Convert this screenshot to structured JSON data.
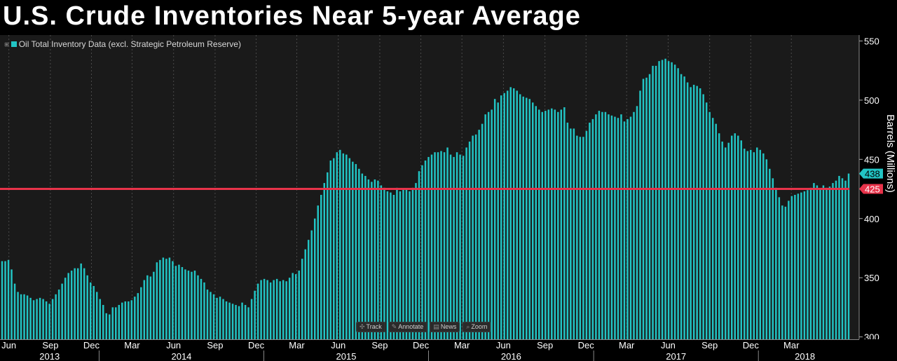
{
  "title": "U.S. Crude Inventories Near 5-year Average",
  "toolbar": [
    {
      "icon": "track-icon",
      "glyph": "✣",
      "label": "Track"
    },
    {
      "icon": "annotate-icon",
      "glyph": "✎",
      "label": "Annotate"
    },
    {
      "icon": "news-icon",
      "glyph": "▤",
      "label": "News"
    },
    {
      "icon": "zoom-icon",
      "glyph": "⌕",
      "label": "Zoom"
    }
  ],
  "colors": {
    "background": "#1a1a1a",
    "bar": "#22c4c4",
    "reference_line": "#e8334a",
    "grid": "#4a4a4a",
    "axis_text": "#ffffff"
  },
  "chart_data": {
    "type": "bar",
    "legend": [
      "Oil Total Inventory Data (excl. Strategic Petroleum Reserve)"
    ],
    "legend_placement": "top-left",
    "ylabel": "Barrels (Millions)",
    "ylim": [
      298,
      555
    ],
    "y_ticks": [
      300,
      350,
      400,
      450,
      500,
      550
    ],
    "y_axis_side": "right",
    "grid": "vertical dashed at month ticks",
    "x_month_ticks": [
      "Jun",
      "Sep",
      "Dec",
      "Mar",
      "Jun",
      "Sep",
      "Dec",
      "Mar",
      "Jun",
      "Sep",
      "Dec",
      "Mar",
      "Jun",
      "Sep",
      "Dec",
      "Mar",
      "Jun",
      "Sep",
      "Dec",
      "Mar"
    ],
    "x_year_labels": [
      "2013",
      "2014",
      "2015",
      "2016",
      "2017",
      "2018"
    ],
    "series": [
      {
        "name": "Oil Total Inventory Data (excl. Strategic Petroleum Reserve)",
        "start": "2013-05-31",
        "interval": "weekly",
        "values": [
          364,
          364,
          365,
          357,
          345,
          338,
          336,
          336,
          335,
          333,
          331,
          332,
          333,
          332,
          330,
          328,
          332,
          336,
          340,
          345,
          350,
          354,
          356,
          358,
          358,
          362,
          358,
          352,
          346,
          343,
          338,
          332,
          327,
          320,
          319,
          325,
          325,
          327,
          329,
          330,
          330,
          331,
          334,
          337,
          342,
          348,
          352,
          351,
          355,
          363,
          365,
          367,
          366,
          367,
          364,
          360,
          361,
          359,
          357,
          356,
          355,
          356,
          352,
          349,
          346,
          340,
          338,
          336,
          333,
          334,
          332,
          330,
          329,
          328,
          327,
          326,
          329,
          327,
          325,
          332,
          339,
          345,
          348,
          349,
          348,
          346,
          348,
          349,
          347,
          348,
          347,
          350,
          354,
          353,
          356,
          366,
          374,
          382,
          390,
          400,
          411,
          420,
          430,
          439,
          449,
          451,
          456,
          458,
          455,
          454,
          451,
          448,
          446,
          442,
          438,
          436,
          433,
          431,
          433,
          432,
          428,
          426,
          423,
          422,
          420,
          426,
          423,
          425,
          425,
          423,
          426,
          430,
          440,
          445,
          449,
          452,
          454,
          456,
          456,
          457,
          456,
          460,
          454,
          452,
          456,
          454,
          453,
          460,
          465,
          470,
          471,
          475,
          480,
          488,
          490,
          492,
          501,
          498,
          504,
          506,
          508,
          511,
          510,
          508,
          505,
          503,
          502,
          501,
          498,
          495,
          492,
          490,
          491,
          492,
          493,
          492,
          490,
          492,
          494,
          481,
          476,
          476,
          470,
          469,
          469,
          474,
          481,
          484,
          488,
          491,
          490,
          490,
          488,
          487,
          486,
          485,
          488,
          482,
          484,
          486,
          490,
          495,
          508,
          518,
          519,
          522,
          529,
          529,
          533,
          534,
          535,
          533,
          532,
          530,
          527,
          522,
          520,
          515,
          511,
          513,
          512,
          510,
          505,
          498,
          490,
          485,
          480,
          472,
          465,
          460,
          464,
          470,
          472,
          470,
          466,
          459,
          457,
          458,
          456,
          460,
          458,
          455,
          450,
          442,
          434,
          426,
          418,
          411,
          410,
          415,
          419,
          420,
          421,
          422,
          423,
          424,
          426,
          430,
          428,
          425,
          428,
          426,
          427,
          430,
          432,
          436,
          434,
          432,
          438
        ]
      }
    ],
    "reference_line": {
      "value": 425,
      "label": "425"
    },
    "last_value_label": "438"
  }
}
